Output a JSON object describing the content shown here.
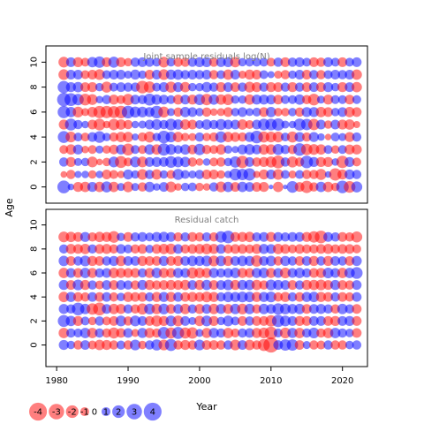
{
  "chart_data": {
    "type": "scatter",
    "subtype": "bubble-residuals",
    "ylabel": "Age",
    "xlabel": "Year",
    "x_ticks": [
      1980,
      1990,
      2000,
      2010,
      2020
    ],
    "y_ticks": [
      0,
      2,
      4,
      6,
      8,
      10
    ],
    "years": [
      1981,
      1982,
      1983,
      1984,
      1985,
      1986,
      1987,
      1988,
      1989,
      1990,
      1991,
      1992,
      1993,
      1994,
      1995,
      1996,
      1997,
      1998,
      1999,
      2000,
      2001,
      2002,
      2003,
      2004,
      2005,
      2006,
      2007,
      2008,
      2009,
      2010,
      2011,
      2012,
      2013,
      2014,
      2015,
      2016,
      2017,
      2018,
      2019,
      2020,
      2021,
      2022
    ],
    "colors": {
      "positive": "#0000ff",
      "negative": "#ff0000",
      "panel_title": "#808080"
    },
    "panels": [
      {
        "title": "Joint sample residuals log(N)",
        "xlim": [
          1978.5,
          2023.5
        ],
        "ylim": [
          -1.3,
          11.3
        ],
        "ages": [
          0,
          1,
          2,
          3,
          4,
          5,
          6,
          7,
          8,
          9,
          10
        ],
        "residuals": [
          [
            2.3,
            0.6,
            -1.4,
            -1.5,
            1.4,
            -1.5,
            1.7,
            -1.5,
            0.9,
            -1.6,
            0.9,
            -1.2,
            1.5,
            0.8,
            1.3,
            -1.6,
            -0.8,
            1.0,
            1.1,
            -1.0,
            -0.8,
            1.2,
            -1.6,
            1.5,
            -1.3,
            1.5,
            1.3,
            -1.3,
            -1.4,
            0.3,
            -1.5,
            0.3,
            1.9,
            -1.3,
            -2.1,
            -1.2,
            1.5,
            -1.5,
            -1.0,
            2.2,
            -1.9,
            1.7
          ],
          [
            -0.6,
            -1.2,
            0.7,
            0.8,
            -1.0,
            0.8,
            -1.3,
            -1.1,
            -0.8,
            1.4,
            1.0,
            -1.6,
            1.2,
            -1.5,
            1.0,
            -1.1,
            1.7,
            1.1,
            0.9,
            1.2,
            -1.3,
            -1.3,
            -1.0,
            0.8,
            2.0,
            1.8,
            2.1,
            -0.7,
            -1.4,
            1.3,
            -1.6,
            1.1,
            -0.9,
            1.1,
            -1.2,
            -1.2,
            -1.7,
            0.6,
            -2.1,
            -1.4,
            1.4,
            1.2
          ],
          [
            1.2,
            -1.4,
            0.9,
            1.0,
            -1.6,
            -0.6,
            -1.0,
            1.6,
            -2.0,
            -1.1,
            1.6,
            -1.6,
            1.3,
            1.4,
            1.3,
            1.9,
            1.6,
            1.5,
            -1.2,
            -0.8,
            0.8,
            -1.1,
            -1.2,
            1.0,
            1.8,
            -2.1,
            1.3,
            -1.2,
            -1.4,
            -1.7,
            -2.3,
            1.2,
            -1.7,
            -1.2,
            2.2,
            1.4,
            -1.4,
            -1.4,
            0.8,
            -2.1,
            1.4,
            -1.1
          ],
          [
            -1.1,
            -1.5,
            1.4,
            -0.8,
            -1.1,
            0.9,
            -1.0,
            -1.3,
            1.4,
            -2.0,
            1.1,
            -1.1,
            1.5,
            -1.5,
            2.1,
            1.6,
            1.1,
            1.5,
            -1.3,
            1.8,
            -1.2,
            -1.1,
            -1.5,
            1.0,
            0.7,
            1.4,
            1.6,
            1.3,
            -1.5,
            -1.5,
            1.7,
            1.2,
            -1.2,
            2.2,
            -1.8,
            -1.6,
            -1.5,
            1.1,
            -1.0,
            1.1,
            -1.4,
            -1.4
          ],
          [
            2.0,
            -1.6,
            1.1,
            -1.1,
            1.3,
            1.9,
            1.0,
            -1.2,
            -1.5,
            -1.5,
            0.7,
            -1.2,
            -1.7,
            1.0,
            2.2,
            1.6,
            -1.5,
            -1.0,
            -0.9,
            1.2,
            -1.0,
            -1.2,
            1.8,
            -1.5,
            -1.3,
            -1.2,
            1.4,
            2.2,
            -1.7,
            -1.6,
            -1.6,
            1.1,
            -1.7,
            1.4,
            -1.2,
            1.4,
            0.8,
            -0.6,
            1.1,
            0.9,
            -1.4,
            1.2
          ],
          [
            -1.4,
            2.0,
            1.2,
            0.8,
            -1.3,
            -1.9,
            -0.8,
            -1.8,
            -1.5,
            -1.2,
            0.8,
            0.9,
            1.3,
            1.6,
            1.2,
            1.9,
            1.5,
            -1.5,
            -1.3,
            1.1,
            1.5,
            1.2,
            1.7,
            1.3,
            1.3,
            -1.5,
            -1.1,
            1.3,
            1.9,
            1.9,
            2.1,
            0.9,
            0.8,
            2.0,
            1.8,
            -1.8,
            1.3,
            -1.0,
            1.3,
            -1.4,
            -1.5,
            -0.7
          ],
          [
            2.1,
            1.5,
            -1.6,
            -0.9,
            -1.5,
            -2.1,
            -2.1,
            -2.0,
            -2.2,
            2.2,
            1.7,
            1.6,
            1.4,
            2.2,
            -1.7,
            0.9,
            -1.2,
            1.5,
            1.3,
            1.0,
            -1.2,
            -0.8,
            -0.9,
            -1.3,
            1.0,
            1.3,
            0.9,
            1.1,
            -1.3,
            1.5,
            -1.0,
            -1.0,
            1.0,
            -1.2,
            1.4,
            1.4,
            -1.5,
            -1.3,
            1.0,
            1.3,
            -1.5,
            -1.3
          ],
          [
            2.5,
            2.3,
            1.8,
            -1.9,
            -1.6,
            0.8,
            1.2,
            -1.4,
            -1.1,
            -1.8,
            1.3,
            1.2,
            2.0,
            1.5,
            1.3,
            1.1,
            -1.4,
            1.3,
            -1.4,
            1.7,
            -1.8,
            1.5,
            -1.5,
            -1.7,
            1.0,
            1.0,
            -1.5,
            1.4,
            1.4,
            1.3,
            -1.3,
            1.1,
            1.1,
            1.5,
            -1.2,
            -1.9,
            0.9,
            -1.4,
            1.1,
            1.1,
            -1.3,
            1.1
          ],
          [
            2.1,
            1.4,
            1.5,
            -1.3,
            -1.4,
            1.0,
            -1.7,
            1.1,
            1.3,
            1.2,
            1.2,
            -2.2,
            -1.8,
            1.1,
            1.4,
            -1.7,
            1.4,
            -1.5,
            1.0,
            1.0,
            1.5,
            1.2,
            -1.4,
            1.3,
            -1.3,
            1.2,
            -1.6,
            -1.4,
            1.2,
            -1.4,
            -1.3,
            1.2,
            -1.4,
            1.2,
            -1.3,
            1.3,
            -1.3,
            1.4,
            1.0,
            -1.4,
            1.3,
            -1.5
          ],
          [
            -1.6,
            1.3,
            1.3,
            -1.1,
            -1.3,
            -1.6,
            1.1,
            1.3,
            1.3,
            0.9,
            1.4,
            1.0,
            -1.3,
            1.3,
            -1.6,
            1.4,
            1.5,
            1.2,
            1.3,
            1.2,
            1.3,
            -1.2,
            1.1,
            -1.5,
            1.3,
            -0.9,
            -1.4,
            -1.3,
            1.1,
            0.7,
            -0.9,
            -1.2,
            1.0,
            1.3,
            -1.3,
            1.2,
            -1.2,
            1.1,
            1.3,
            1.2,
            1.3,
            -1.5
          ],
          [
            -1.6,
            1.3,
            -1.4,
            -1.1,
            1.5,
            1.8,
            -1.3,
            1.7,
            -1.3,
            -1.0,
            1.2,
            1.3,
            1.2,
            1.1,
            -1.6,
            1.1,
            -1.2,
            -1.2,
            1.2,
            1.4,
            1.4,
            -1.2,
            1.3,
            1.4,
            -1.5,
            1.0,
            1.1,
            1.1,
            1.1,
            -1.1,
            1.2,
            -1.3,
            1.2,
            1.3,
            1.1,
            -1.3,
            -1.2,
            1.3,
            1.1,
            -1.3,
            1.1,
            1.3
          ]
        ]
      },
      {
        "title": "Residual catch",
        "xlim": [
          1978.5,
          2023.5
        ],
        "ylim": [
          -1.8,
          11.3
        ],
        "ages": [
          0,
          1,
          2,
          3,
          4,
          5,
          6,
          7,
          8,
          9
        ],
        "residuals": [
          [
            1.4,
            1.0,
            -1.2,
            1.3,
            -1.1,
            -1.5,
            -1.4,
            -1.2,
            1.1,
            -1.2,
            1.6,
            -1.0,
            1.2,
            1.7,
            -1.6,
            2.0,
            -1.2,
            -1.4,
            -1.2,
            1.6,
            -1.3,
            -1.3,
            -1.2,
            1.2,
            -1.6,
            1.3,
            -1.5,
            -1.2,
            -2.0,
            -3.2,
            1.3,
            1.8,
            1.8,
            -1.3,
            0.9,
            -1.2,
            -1.1,
            1.2,
            -1.2,
            -1.2,
            1.0,
            1.2
          ],
          [
            -1.5,
            1.2,
            1.1,
            1.5,
            -1.5,
            1.2,
            -1.2,
            -1.7,
            -1.3,
            1.3,
            -0.9,
            1.4,
            -1.4,
            -1.2,
            2.0,
            -1.7,
            2.0,
            -1.7,
            -1.8,
            0.9,
            -1.4,
            1.4,
            1.2,
            -1.5,
            -1.1,
            1.2,
            1.3,
            -1.4,
            -1.6,
            -2.2,
            1.1,
            -1.6,
            1.4,
            -1.5,
            1.2,
            1.6,
            -1.2,
            -1.5,
            1.5,
            1.2,
            1.0,
            -1.3
          ],
          [
            2.0,
            1.5,
            -1.4,
            1.1,
            -1.0,
            1.2,
            -1.1,
            -1.3,
            1.6,
            -1.2,
            1.6,
            1.3,
            -1.3,
            -1.7,
            -1.4,
            1.6,
            -1.6,
            1.3,
            0.9,
            -1.5,
            1.6,
            -1.4,
            1.0,
            1.6,
            1.1,
            -1.3,
            1.2,
            -1.3,
            -1.3,
            -1.8,
            2.1,
            1.6,
            1.3,
            -1.4,
            -1.3,
            1.3,
            1.3,
            -1.3,
            -1.4,
            1.3,
            1.4,
            -1.3
          ],
          [
            1.4,
            1.2,
            2.2,
            1.5,
            -1.8,
            -2.3,
            1.3,
            -1.5,
            -1.4,
            1.2,
            -1.2,
            -1.7,
            1.6,
            -1.5,
            1.6,
            -1.3,
            1.3,
            -1.5,
            1.2,
            -1.4,
            1.3,
            -1.5,
            1.4,
            -1.4,
            1.5,
            -1.6,
            1.5,
            -1.2,
            1.5,
            1.3,
            1.8,
            1.6,
            1.4,
            1.5,
            -1.3,
            1.3,
            1.4,
            1.2,
            -1.2,
            1.5,
            1.2,
            -1.3
          ],
          [
            -1.5,
            1.4,
            -1.3,
            -1.2,
            1.3,
            -1.3,
            1.3,
            -1.2,
            1.0,
            -1.4,
            -1.3,
            -1.3,
            1.2,
            -1.4,
            1.4,
            -1.4,
            1.3,
            -1.3,
            -1.4,
            -1.3,
            -1.6,
            -1.4,
            1.2,
            1.5,
            1.4,
            1.6,
            1.5,
            -1.4,
            1.4,
            1.6,
            -1.2,
            -1.4,
            1.2,
            -1.3,
            1.4,
            1.5,
            -1.4,
            -1.3,
            1.2,
            -1.3,
            -1.2,
            1.3
          ],
          [
            1.4,
            -1.3,
            1.6,
            -1.4,
            1.2,
            -1.1,
            1.3,
            -1.3,
            1.3,
            1.2,
            -1.2,
            1.4,
            -1.4,
            -1.2,
            -1.3,
            -1.4,
            -1.3,
            -1.5,
            1.3,
            -1.4,
            1.5,
            -1.3,
            1.3,
            1.6,
            -1.4,
            1.4,
            1.5,
            -1.5,
            -1.2,
            1.6,
            1.4,
            1.3,
            -1.3,
            1.2,
            -1.4,
            -1.5,
            -1.6,
            -1.3,
            1.4,
            -1.3,
            -1.2,
            1.3
          ],
          [
            -1.5,
            1.3,
            -1.3,
            1.5,
            -1.4,
            1.2,
            1.3,
            -1.5,
            -1.4,
            -1.3,
            -1.3,
            1.2,
            -1.4,
            1.5,
            -1.4,
            -1.3,
            1.4,
            1.3,
            -1.7,
            -1.5,
            -1.4,
            1.4,
            1.2,
            1.3,
            1.5,
            -1.4,
            -1.3,
            1.4,
            1.5,
            -1.4,
            1.3,
            -1.6,
            1.3,
            1.5,
            1.2,
            -1.3,
            -1.4,
            1.6,
            1.3,
            -1.5,
            1.5,
            1.9
          ],
          [
            1.5,
            -1.3,
            1.2,
            1.6,
            -1.4,
            -1.3,
            1.2,
            1.4,
            -1.5,
            1.3,
            1.3,
            -1.4,
            -1.3,
            -1.3,
            1.4,
            -1.3,
            -1.4,
            1.3,
            1.5,
            1.4,
            1.6,
            -1.6,
            1.5,
            -1.4,
            1.3,
            1.5,
            1.4,
            -1.8,
            1.3,
            1.5,
            -1.2,
            1.4,
            1.2,
            -1.3,
            1.3,
            -1.4,
            1.2,
            -1.4,
            1.3,
            1.2,
            -1.3,
            1.4
          ],
          [
            1.2,
            -1.4,
            -1.3,
            -1.5,
            1.2,
            -1.3,
            -1.4,
            -1.2,
            1.3,
            1.1,
            -1.2,
            -1.3,
            1.0,
            -1.3,
            -1.5,
            -1.6,
            1.3,
            -1.2,
            -1.3,
            -1.4,
            -1.6,
            -1.4,
            1.3,
            -1.2,
            -1.3,
            -1.3,
            -1.2,
            -1.4,
            1.4,
            1.3,
            -1.5,
            -1.3,
            -1.1,
            -1.3,
            -1.2,
            -1.2,
            -1.3,
            -1.4,
            -1.2,
            -1.3,
            -1.3,
            -1.1
          ],
          [
            -1.6,
            -1.5,
            -1.3,
            1.4,
            -1.2,
            -1.5,
            -1.4,
            -1.9,
            1.0,
            -1.3,
            1.2,
            1.3,
            1.1,
            1.4,
            1.5,
            1.3,
            -1.2,
            1.2,
            -1.3,
            -1.2,
            1.2,
            -1.2,
            1.8,
            2.2,
            -1.3,
            -1.4,
            -1.5,
            1.2,
            1.3,
            -1.4,
            1.3,
            1.2,
            1.3,
            1.3,
            -1.4,
            -1.8,
            -2.2,
            1.3,
            1.2,
            -1.3,
            -1.2,
            -1.7
          ]
        ]
      }
    ],
    "legend": {
      "values": [
        -4,
        -3,
        -2,
        -1,
        0,
        1,
        2,
        3,
        4
      ],
      "labels": [
        "-4",
        "-3",
        "-2",
        "-1",
        "0",
        "1",
        "2",
        "3",
        "4"
      ]
    }
  }
}
